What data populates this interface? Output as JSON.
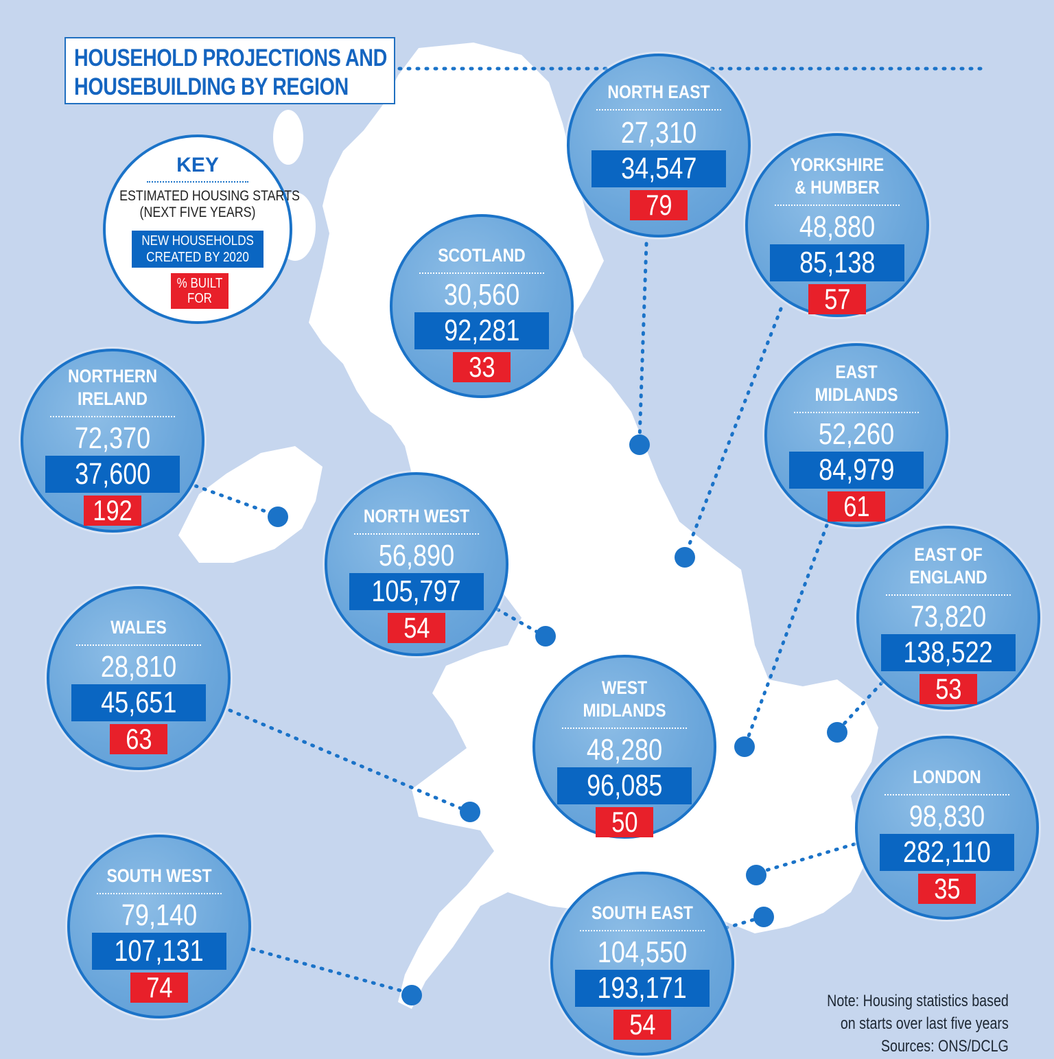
{
  "title": {
    "line1": "HOUSEHOLD PROJECTIONS AND",
    "line2": "HOUSEBUILDING BY REGION"
  },
  "key": {
    "title": "KEY",
    "starts_line1": "ESTIMATED HOUSING STARTS",
    "starts_line2": "(NEXT FIVE YEARS)",
    "households_line1": "NEW HOUSEHOLDS",
    "households_line2": "CREATED BY 2020",
    "pct_line1": "% BUILT",
    "pct_line2": "FOR"
  },
  "regions": {
    "north_east": {
      "name1": "NORTH EAST",
      "name2": "",
      "starts": "27,310",
      "households": "34,547",
      "pct": "79"
    },
    "yorkshire": {
      "name1": "YORKSHIRE",
      "name2": "& HUMBER",
      "starts": "48,880",
      "households": "85,138",
      "pct": "57"
    },
    "scotland": {
      "name1": "SCOTLAND",
      "name2": "",
      "starts": "30,560",
      "households": "92,281",
      "pct": "33"
    },
    "northern_ireland": {
      "name1": "NORTHERN",
      "name2": "IRELAND",
      "starts": "72,370",
      "households": "37,600",
      "pct": "192"
    },
    "east_midlands": {
      "name1": "EAST",
      "name2": "MIDLANDS",
      "starts": "52,260",
      "households": "84,979",
      "pct": "61"
    },
    "north_west": {
      "name1": "NORTH WEST",
      "name2": "",
      "starts": "56,890",
      "households": "105,797",
      "pct": "54"
    },
    "east_of_england": {
      "name1": "EAST OF",
      "name2": "ENGLAND",
      "starts": "73,820",
      "households": "138,522",
      "pct": "53"
    },
    "wales": {
      "name1": "WALES",
      "name2": "",
      "starts": "28,810",
      "households": "45,651",
      "pct": "63"
    },
    "west_midlands": {
      "name1": "WEST",
      "name2": "MIDLANDS",
      "starts": "48,280",
      "households": "96,085",
      "pct": "50"
    },
    "london": {
      "name1": "LONDON",
      "name2": "",
      "starts": "98,830",
      "households": "282,110",
      "pct": "35"
    },
    "south_west": {
      "name1": "SOUTH WEST",
      "name2": "",
      "starts": "79,140",
      "households": "107,131",
      "pct": "74"
    },
    "south_east": {
      "name1": "SOUTH EAST",
      "name2": "",
      "starts": "104,550",
      "households": "193,171",
      "pct": "54"
    }
  },
  "note": {
    "line1": "Note: Housing statistics based",
    "line2": "on starts over last five years",
    "line3": "Sources: ONS/DCLG"
  },
  "colors": {
    "sea": "#c6d6ee",
    "land": "#ffffff",
    "accent_blue": "#0a66c2",
    "circle_fill": "#6aa6db",
    "pct_red": "#e8202a"
  }
}
